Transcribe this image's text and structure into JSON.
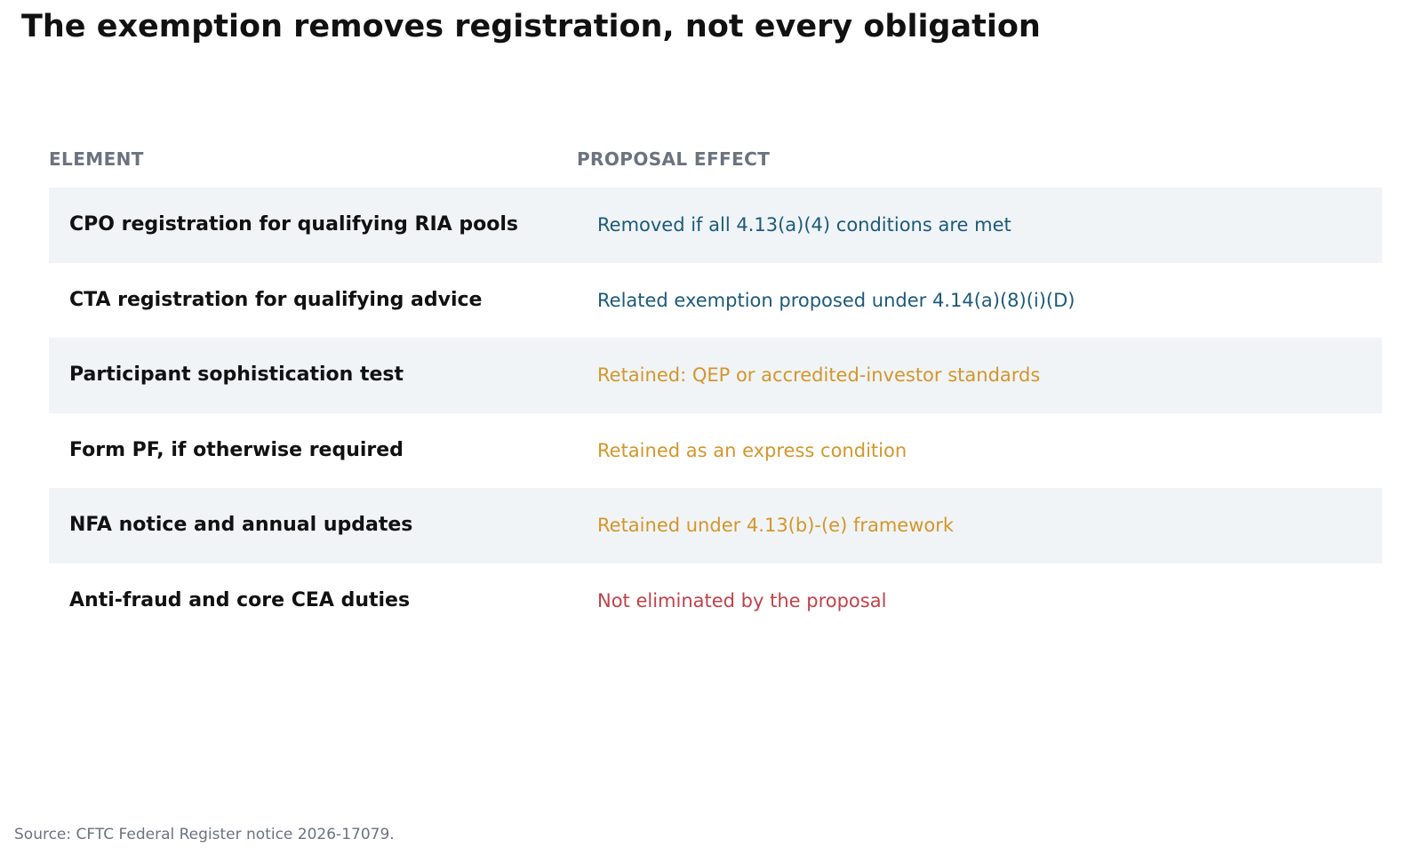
{
  "title": "The exemption removes registration, not every obligation",
  "source": "Source: CFTC Federal Register notice 2026-17079.",
  "colors": {
    "header_text": "#6b7280",
    "row_shade": "#f0f4f7",
    "removed": "#1c5a7a",
    "retained": "#d4962a",
    "not_eliminated": "#c0424a"
  },
  "chart_data": {
    "type": "table",
    "columns": [
      "ELEMENT",
      "PROPOSAL EFFECT"
    ],
    "rows": [
      {
        "element": "CPO registration for qualifying RIA pools",
        "effect": "Removed if all 4.13(a)(4) conditions are met",
        "status": "removed",
        "color": "#1c5a7a"
      },
      {
        "element": "CTA registration for qualifying advice",
        "effect": "Related exemption proposed under 4.14(a)(8)(i)(D)",
        "status": "removed",
        "color": "#1c5a7a"
      },
      {
        "element": "Participant sophistication test",
        "effect": "Retained: QEP or accredited-investor standards",
        "status": "retained",
        "color": "#d4962a"
      },
      {
        "element": "Form PF, if otherwise required",
        "effect": "Retained as an express condition",
        "status": "retained",
        "color": "#d4962a"
      },
      {
        "element": "NFA notice and annual updates",
        "effect": "Retained under 4.13(b)-(e) framework",
        "status": "retained",
        "color": "#d4962a"
      },
      {
        "element": "Anti-fraud and core CEA duties",
        "effect": "Not eliminated by the proposal",
        "status": "not_eliminated",
        "color": "#c0424a"
      }
    ]
  }
}
